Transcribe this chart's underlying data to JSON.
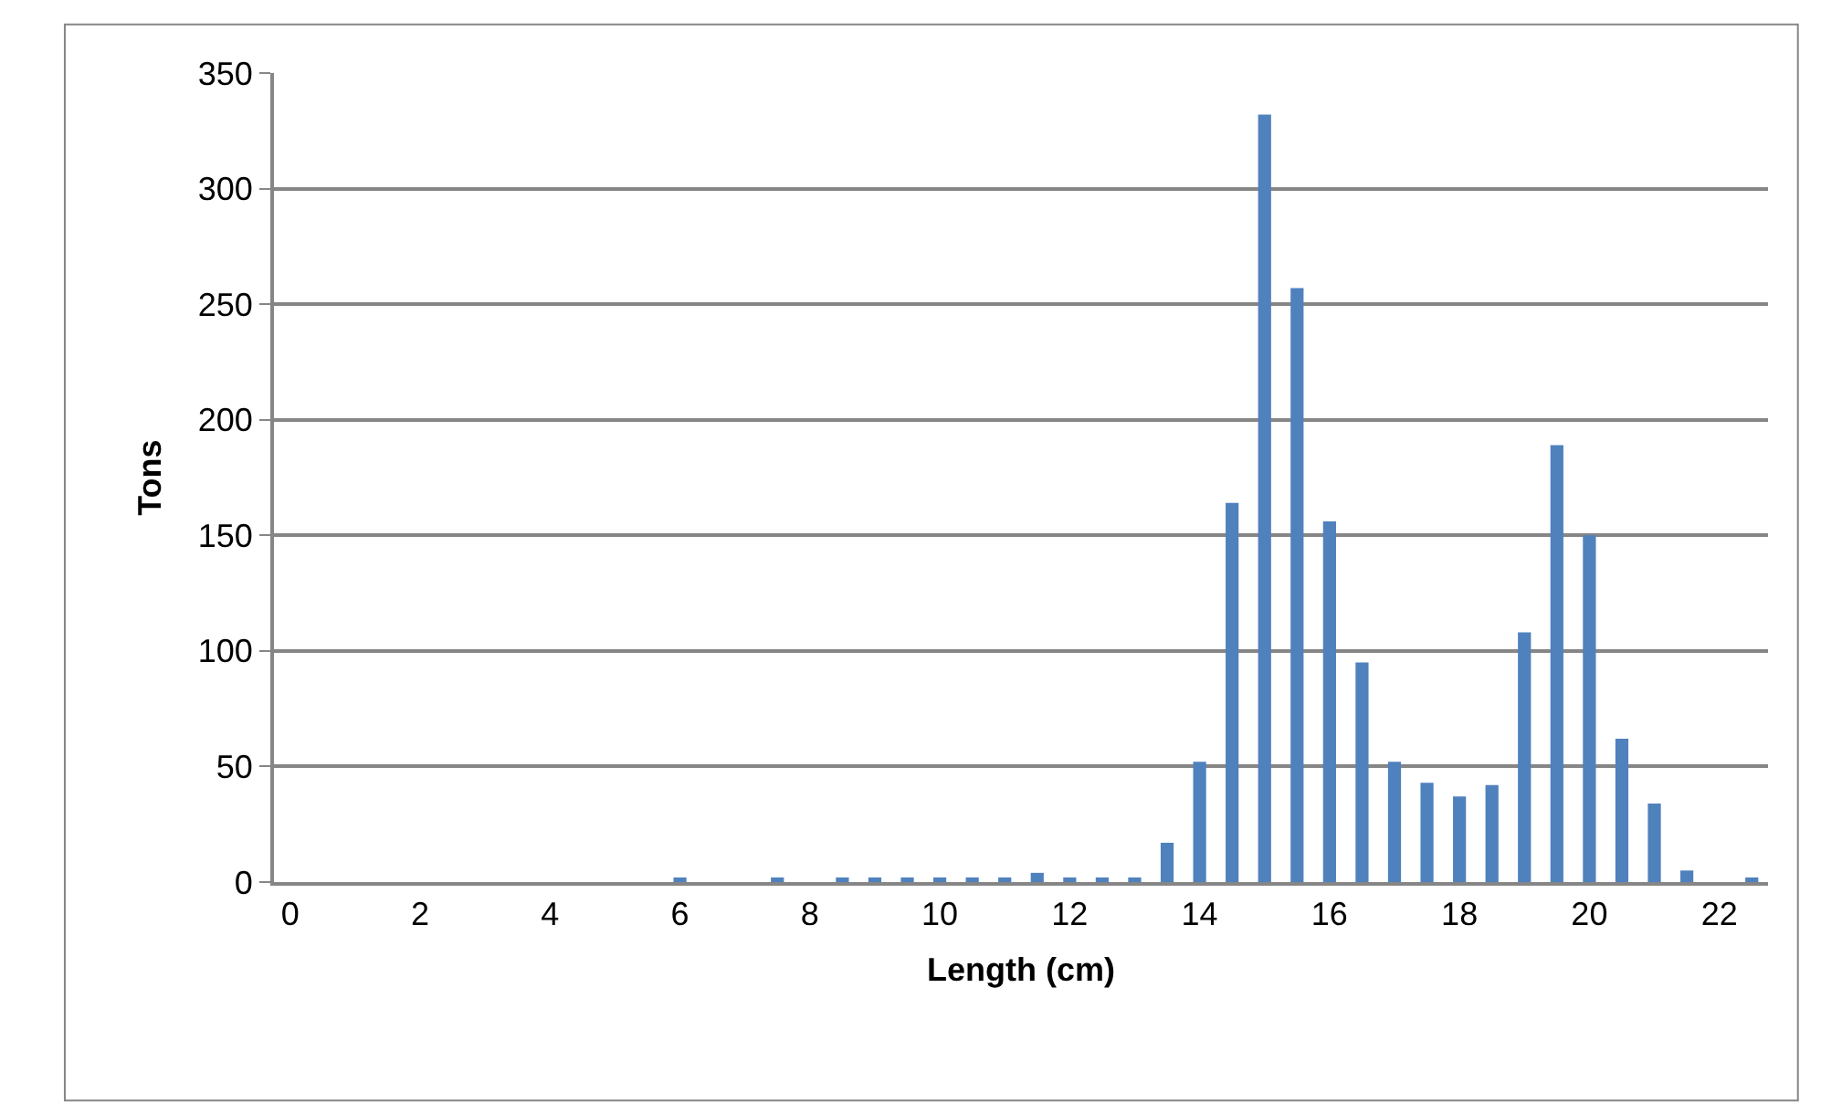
{
  "chart_data": {
    "type": "bar",
    "xlabel": "Length (cm)",
    "ylabel": "Tons",
    "x": [
      6,
      7.5,
      8.5,
      9,
      9.5,
      10,
      10.5,
      11,
      11.5,
      12,
      12.5,
      13,
      13.5,
      14,
      14.5,
      15,
      15.5,
      16,
      16.5,
      17,
      17.5,
      18,
      18.5,
      19,
      19.5,
      20,
      20.5,
      21,
      21.5,
      22.5
    ],
    "values": [
      2,
      2,
      2,
      2,
      2,
      2,
      2,
      2,
      4,
      2,
      2,
      2,
      17,
      52,
      164,
      332,
      257,
      156,
      95,
      52,
      43,
      37,
      42,
      108,
      189,
      150,
      62,
      34,
      5,
      2
    ],
    "color": "#4f81bd",
    "xlim": [
      -0.25,
      22.75
    ],
    "xticks": [
      0,
      2,
      4,
      6,
      8,
      10,
      12,
      14,
      16,
      18,
      20,
      22
    ],
    "ylim": [
      0,
      350
    ],
    "yticks": [
      0,
      50,
      100,
      150,
      200,
      250,
      300,
      350
    ],
    "grid": "y"
  }
}
